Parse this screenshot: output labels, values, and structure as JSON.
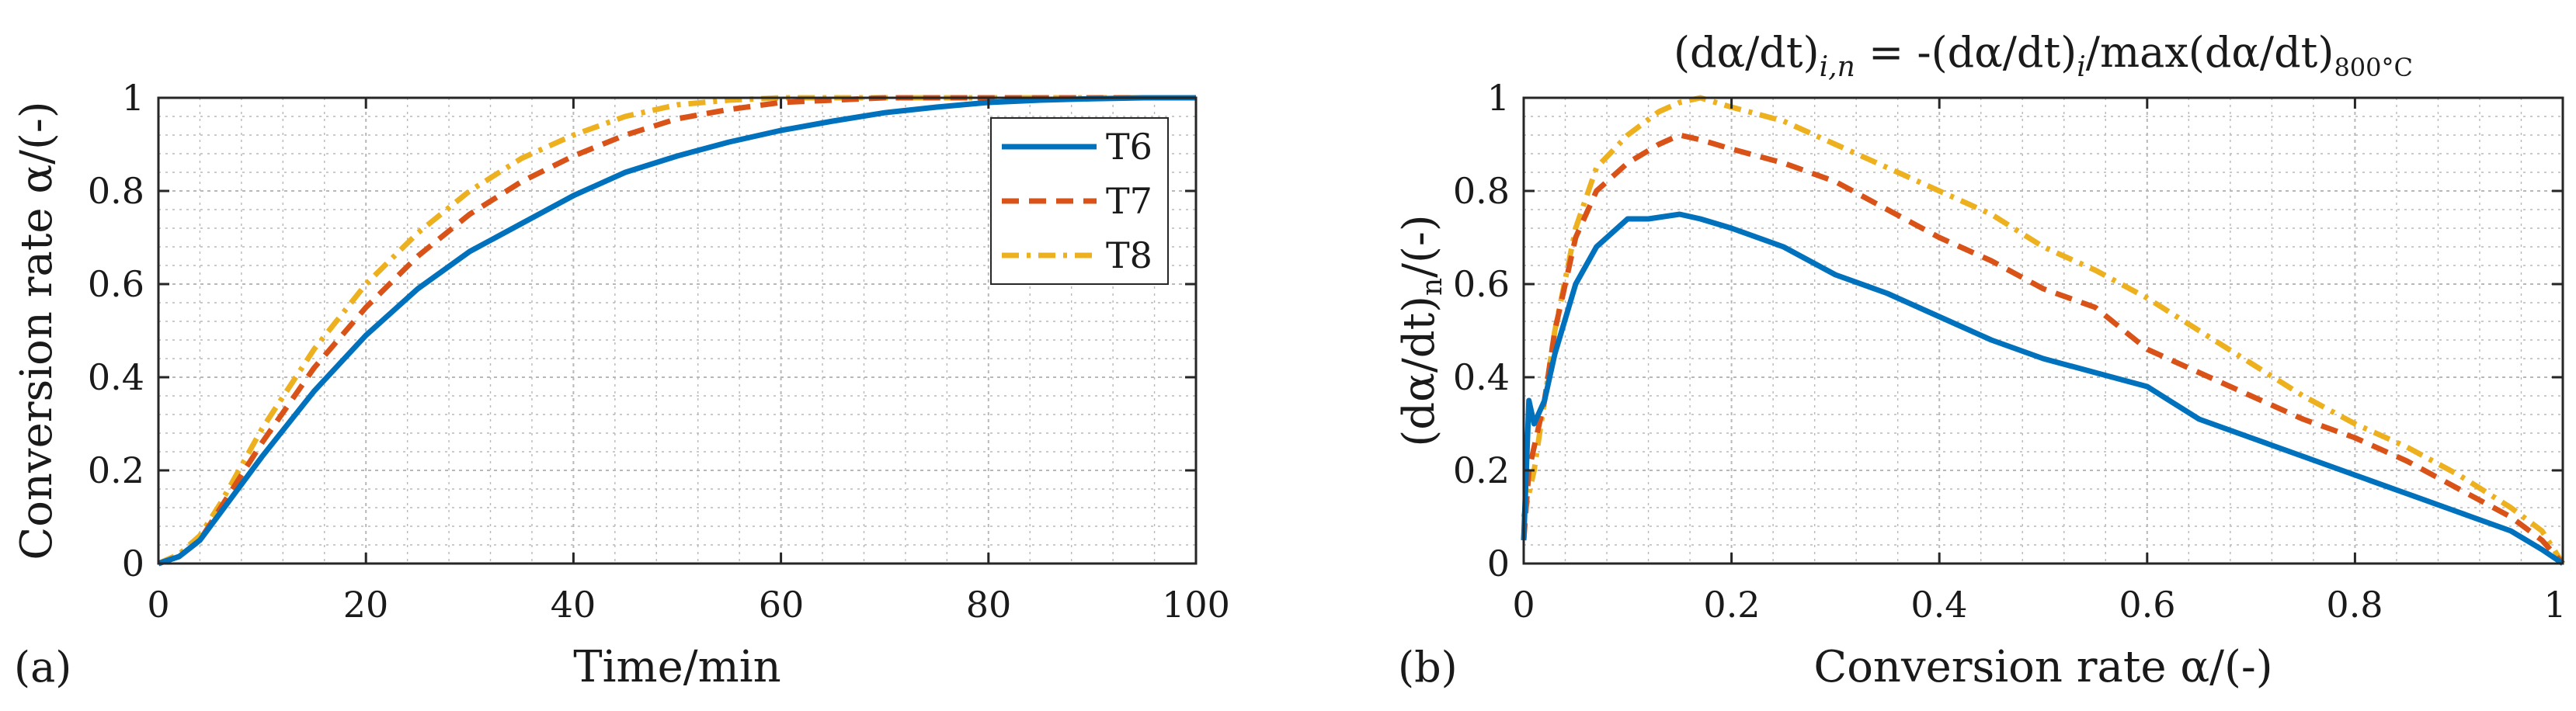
{
  "colors": {
    "T6": "#0072BD",
    "T7": "#D95319",
    "T8": "#EDB120",
    "axis": "#262626",
    "grid": "#b8b8b8"
  },
  "chart_data": [
    {
      "panel_label": "(a)",
      "type": "line",
      "title": "",
      "xlabel": "Time/min",
      "ylabel": "Conversion rate α/(-)",
      "xlim": [
        0,
        100
      ],
      "ylim": [
        0,
        1
      ],
      "xticks": [
        0,
        20,
        40,
        60,
        80,
        100
      ],
      "yticks": [
        0,
        0.2,
        0.4,
        0.6,
        0.8,
        1
      ],
      "xtick_labels": [
        "0",
        "20",
        "40",
        "60",
        "80",
        "100"
      ],
      "ytick_labels": [
        "0",
        "0.2",
        "0.4",
        "0.6",
        "0.8",
        "1"
      ],
      "grid": true,
      "legend": {
        "position": "top-right",
        "entries": [
          "T6",
          "T7",
          "T8"
        ]
      },
      "series": [
        {
          "name": "T6",
          "style": "solid",
          "x": [
            0,
            2,
            4,
            6,
            8,
            10,
            15,
            20,
            25,
            30,
            35,
            40,
            45,
            50,
            55,
            60,
            65,
            70,
            75,
            80,
            85,
            90,
            95,
            100
          ],
          "y": [
            0,
            0.015,
            0.05,
            0.11,
            0.17,
            0.23,
            0.37,
            0.49,
            0.59,
            0.67,
            0.73,
            0.79,
            0.84,
            0.875,
            0.905,
            0.93,
            0.95,
            0.968,
            0.98,
            0.99,
            0.995,
            0.998,
            1.0,
            1.0
          ]
        },
        {
          "name": "T7",
          "style": "dashed",
          "x": [
            0,
            2,
            4,
            6,
            8,
            10,
            15,
            20,
            25,
            30,
            35,
            40,
            45,
            50,
            55,
            60,
            65,
            70,
            80,
            90,
            100
          ],
          "y": [
            0,
            0.015,
            0.05,
            0.12,
            0.19,
            0.26,
            0.42,
            0.55,
            0.66,
            0.75,
            0.82,
            0.875,
            0.92,
            0.955,
            0.975,
            0.99,
            0.995,
            1.0,
            1.0,
            1.0,
            1.0
          ]
        },
        {
          "name": "T8",
          "style": "dashdot",
          "x": [
            0,
            2,
            4,
            6,
            8,
            10,
            15,
            20,
            25,
            30,
            35,
            40,
            45,
            50,
            55,
            60,
            70,
            80,
            90,
            100
          ],
          "y": [
            0,
            0.02,
            0.06,
            0.13,
            0.21,
            0.29,
            0.46,
            0.6,
            0.71,
            0.8,
            0.87,
            0.92,
            0.96,
            0.985,
            0.995,
            1.0,
            1.0,
            1.0,
            1.0,
            1.0
          ]
        }
      ]
    },
    {
      "panel_label": "(b)",
      "type": "line",
      "title": "(dα/dt)",
      "title_parts": [
        "(dα/dt)",
        "i,n",
        " = -(dα/dt)",
        "i",
        "/max(dα/dt)",
        "800°C"
      ],
      "xlabel": "Conversion rate α/(-)",
      "ylabel": "(dα/dt)",
      "ylabel_parts": [
        "(dα/dt)",
        "n",
        "/(-)"
      ],
      "xlim": [
        0,
        1
      ],
      "ylim": [
        0,
        1
      ],
      "xticks": [
        0,
        0.2,
        0.4,
        0.6,
        0.8,
        1
      ],
      "yticks": [
        0,
        0.2,
        0.4,
        0.6,
        0.8,
        1
      ],
      "xtick_labels": [
        "0",
        "0.2",
        "0.4",
        "0.6",
        "0.8",
        "1"
      ],
      "ytick_labels": [
        "0",
        "0.2",
        "0.4",
        "0.6",
        "0.8",
        "1"
      ],
      "grid": true,
      "series": [
        {
          "name": "T6",
          "style": "solid",
          "x": [
            0,
            0.005,
            0.01,
            0.02,
            0.03,
            0.05,
            0.07,
            0.1,
            0.12,
            0.15,
            0.17,
            0.2,
            0.25,
            0.3,
            0.35,
            0.4,
            0.45,
            0.5,
            0.55,
            0.6,
            0.65,
            0.7,
            0.75,
            0.8,
            0.85,
            0.9,
            0.95,
            0.98,
            1.0
          ],
          "y": [
            0.05,
            0.35,
            0.3,
            0.35,
            0.45,
            0.6,
            0.68,
            0.74,
            0.74,
            0.75,
            0.74,
            0.72,
            0.68,
            0.62,
            0.58,
            0.53,
            0.48,
            0.44,
            0.41,
            0.38,
            0.31,
            0.27,
            0.23,
            0.19,
            0.15,
            0.11,
            0.07,
            0.03,
            0.0
          ]
        },
        {
          "name": "T7",
          "style": "dashed",
          "x": [
            0,
            0.005,
            0.01,
            0.02,
            0.03,
            0.05,
            0.07,
            0.1,
            0.13,
            0.15,
            0.17,
            0.2,
            0.25,
            0.3,
            0.35,
            0.4,
            0.45,
            0.5,
            0.55,
            0.6,
            0.65,
            0.7,
            0.75,
            0.8,
            0.85,
            0.9,
            0.95,
            0.98,
            1.0
          ],
          "y": [
            0.05,
            0.2,
            0.25,
            0.35,
            0.5,
            0.7,
            0.8,
            0.86,
            0.9,
            0.92,
            0.91,
            0.89,
            0.86,
            0.82,
            0.76,
            0.7,
            0.65,
            0.59,
            0.55,
            0.46,
            0.41,
            0.36,
            0.31,
            0.27,
            0.22,
            0.16,
            0.1,
            0.05,
            0.0
          ]
        },
        {
          "name": "T8",
          "style": "dashdot",
          "x": [
            0,
            0.005,
            0.01,
            0.02,
            0.03,
            0.05,
            0.07,
            0.1,
            0.13,
            0.15,
            0.17,
            0.2,
            0.25,
            0.3,
            0.35,
            0.4,
            0.45,
            0.5,
            0.55,
            0.6,
            0.65,
            0.7,
            0.75,
            0.8,
            0.85,
            0.9,
            0.95,
            0.98,
            1.0
          ],
          "y": [
            0.1,
            0.15,
            0.2,
            0.35,
            0.5,
            0.72,
            0.85,
            0.92,
            0.97,
            0.99,
            1.0,
            0.98,
            0.95,
            0.9,
            0.85,
            0.8,
            0.75,
            0.68,
            0.63,
            0.57,
            0.5,
            0.43,
            0.36,
            0.3,
            0.25,
            0.19,
            0.12,
            0.07,
            0.0
          ]
        }
      ]
    }
  ]
}
